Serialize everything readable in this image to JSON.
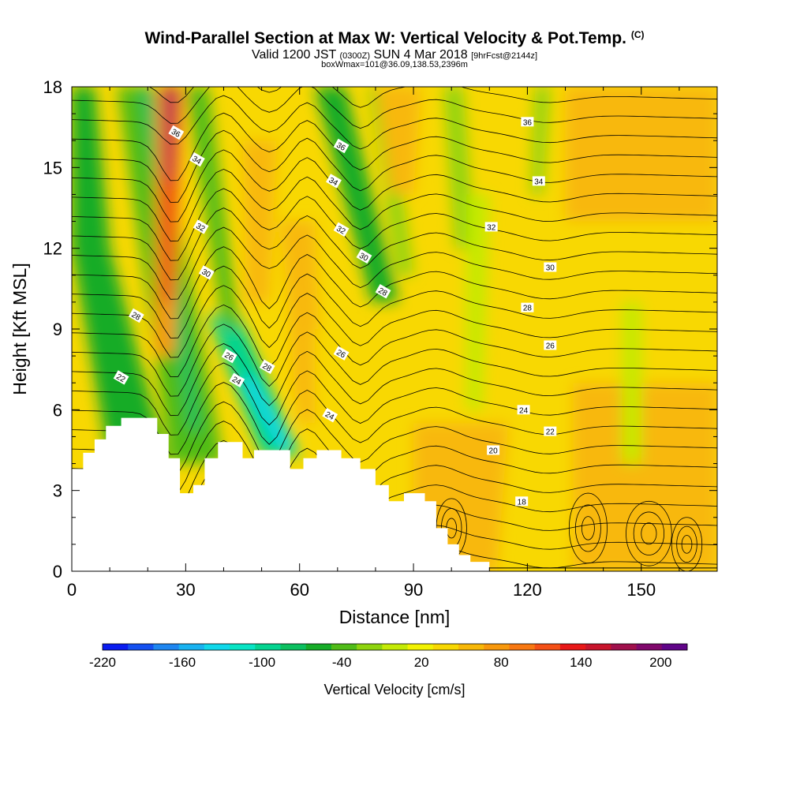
{
  "title": {
    "main": "Wind-Parallel Section at Max W: Vertical Velocity & Pot.Temp.",
    "copyright": "(C)",
    "valid_prefix": "Valid 1200 JST",
    "valid_utc": "(0300Z)",
    "valid_date": "SUN 4 Mar 2018",
    "forecast": "[9hrFcst@2144z]",
    "box_info": "boxWmax=101@36.09,138.53,2396m"
  },
  "chart_data": {
    "type": "heatmap",
    "xlabel": "Distance [nm]",
    "ylabel": "Height [Kft MSL]",
    "xlim": [
      0,
      170
    ],
    "ylim": [
      0,
      18
    ],
    "x_ticks": [
      0,
      30,
      60,
      90,
      120,
      150
    ],
    "x_tick_labels": [
      "0",
      "30",
      "60",
      "90",
      "120",
      "150"
    ],
    "y_ticks": [
      0,
      3,
      6,
      9,
      12,
      15,
      18
    ],
    "y_tick_labels": [
      "0",
      "3",
      "6",
      "9",
      "12",
      "15",
      "18"
    ],
    "colorbar": {
      "label": "Vertical Velocity [cm/s]",
      "min": -220,
      "max": 220,
      "tick_values": [
        -220,
        -160,
        -100,
        -40,
        20,
        80,
        140,
        200
      ],
      "tick_labels": [
        "-220",
        "-160",
        "-100",
        "-40",
        "20",
        "80",
        "140",
        "200"
      ],
      "colors": [
        "#0a1cf0",
        "#1450f0",
        "#1e86f0",
        "#18b2f0",
        "#10d8ea",
        "#08e4c4",
        "#04d490",
        "#0cc060",
        "#16ac28",
        "#50bc18",
        "#8ed40e",
        "#c4ea06",
        "#f2f202",
        "#f8d802",
        "#f8b808",
        "#f8980c",
        "#f87812",
        "#f45016",
        "#e81818",
        "#c8142c",
        "#a0104c",
        "#80086c",
        "#600488"
      ]
    },
    "theta_contour_labels": [
      {
        "label": "36",
        "x": 27.5,
        "y": 16.3
      },
      {
        "label": "34",
        "x": 33,
        "y": 15.3
      },
      {
        "label": "32",
        "x": 34,
        "y": 12.8
      },
      {
        "label": "30",
        "x": 35.5,
        "y": 11.1
      },
      {
        "label": "28",
        "x": 17,
        "y": 9.5
      },
      {
        "label": "26",
        "x": 41.5,
        "y": 8.0
      },
      {
        "label": "24",
        "x": 43.5,
        "y": 7.1
      },
      {
        "label": "22",
        "x": 13,
        "y": 7.2
      },
      {
        "label": "28",
        "x": 51.5,
        "y": 7.6
      },
      {
        "label": "36",
        "x": 71,
        "y": 15.8
      },
      {
        "label": "34",
        "x": 69,
        "y": 14.5
      },
      {
        "label": "32",
        "x": 71,
        "y": 12.7
      },
      {
        "label": "30",
        "x": 77,
        "y": 11.7
      },
      {
        "label": "28",
        "x": 82,
        "y": 10.4
      },
      {
        "label": "26",
        "x": 71,
        "y": 8.1
      },
      {
        "label": "24",
        "x": 68,
        "y": 5.8
      },
      {
        "label": "36",
        "x": 120,
        "y": 16.7
      },
      {
        "label": "34",
        "x": 123,
        "y": 14.5
      },
      {
        "label": "32",
        "x": 110.5,
        "y": 12.8
      },
      {
        "label": "30",
        "x": 126,
        "y": 11.3
      },
      {
        "label": "28",
        "x": 120,
        "y": 9.8
      },
      {
        "label": "26",
        "x": 126,
        "y": 8.4
      },
      {
        "label": "24",
        "x": 119,
        "y": 6.0
      },
      {
        "label": "22",
        "x": 126,
        "y": 5.2
      },
      {
        "label": "20",
        "x": 111,
        "y": 4.5
      },
      {
        "label": "18",
        "x": 118.5,
        "y": 2.6
      }
    ],
    "terrain_profile": [
      [
        0,
        3.8
      ],
      [
        3,
        3.8
      ],
      [
        3,
        4.4
      ],
      [
        6,
        4.4
      ],
      [
        6,
        4.9
      ],
      [
        9,
        4.9
      ],
      [
        9,
        5.4
      ],
      [
        13,
        5.4
      ],
      [
        13,
        5.7
      ],
      [
        22.5,
        5.7
      ],
      [
        22.5,
        5.1
      ],
      [
        25.5,
        5.1
      ],
      [
        25.5,
        4.2
      ],
      [
        28.5,
        4.2
      ],
      [
        28.5,
        2.9
      ],
      [
        32,
        2.9
      ],
      [
        32,
        3.2
      ],
      [
        35,
        3.2
      ],
      [
        35,
        4.2
      ],
      [
        38.5,
        4.2
      ],
      [
        38.5,
        4.8
      ],
      [
        45,
        4.8
      ],
      [
        45,
        4.2
      ],
      [
        48,
        4.2
      ],
      [
        48,
        4.5
      ],
      [
        57.5,
        4.5
      ],
      [
        57.5,
        3.8
      ],
      [
        61,
        3.8
      ],
      [
        61,
        4.2
      ],
      [
        64.5,
        4.2
      ],
      [
        64.5,
        4.5
      ],
      [
        71,
        4.5
      ],
      [
        71,
        4.2
      ],
      [
        76,
        4.2
      ],
      [
        76,
        3.8
      ],
      [
        80,
        3.8
      ],
      [
        80,
        3.2
      ],
      [
        83.5,
        3.2
      ],
      [
        83.5,
        2.6
      ],
      [
        87.5,
        2.6
      ],
      [
        87.5,
        2.9
      ],
      [
        93,
        2.9
      ],
      [
        93,
        2.6
      ],
      [
        96,
        2.6
      ],
      [
        96,
        1.6
      ],
      [
        99,
        1.6
      ],
      [
        99,
        1.0
      ],
      [
        102,
        1.0
      ],
      [
        102,
        0.6
      ],
      [
        105,
        0.6
      ],
      [
        105,
        0.35
      ],
      [
        110,
        0.35
      ],
      [
        110,
        0
      ]
    ]
  }
}
